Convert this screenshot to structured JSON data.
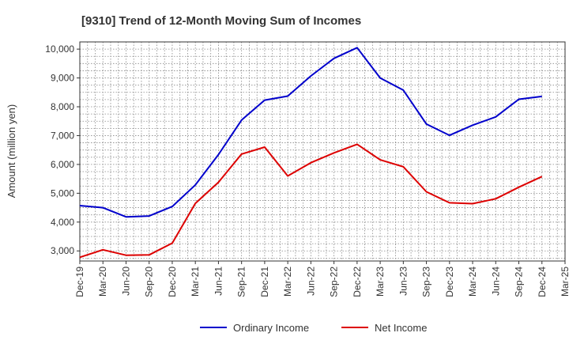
{
  "chart_data": {
    "type": "line",
    "title": "[9310]  Trend of 12-Month Moving Sum of Incomes",
    "xlabel": "",
    "ylabel": "Amount (million yen)",
    "ylim": [
      2650,
      10250
    ],
    "yticks": [
      "3,000",
      "4,000",
      "5,000",
      "6,000",
      "7,000",
      "8,000",
      "9,000",
      "10,000"
    ],
    "ytick_values": [
      3000,
      4000,
      5000,
      6000,
      7000,
      8000,
      9000,
      10000
    ],
    "xticks": [
      "Dec-19",
      "Mar-20",
      "Jun-20",
      "Sep-20",
      "Dec-20",
      "Mar-21",
      "Jun-21",
      "Sep-21",
      "Dec-21",
      "Mar-22",
      "Jun-22",
      "Sep-22",
      "Dec-22",
      "Mar-23",
      "Jun-23",
      "Sep-23",
      "Dec-23",
      "Mar-24",
      "Jun-24",
      "Sep-24",
      "Dec-24",
      "Mar-25"
    ],
    "grid": true,
    "legend_position": "bottom",
    "series": [
      {
        "name": "Ordinary Income",
        "color": "#0000cc",
        "values": [
          4570,
          4500,
          4180,
          4210,
          4540,
          5290,
          6340,
          7540,
          8230,
          8370,
          9070,
          9680,
          10050,
          9000,
          8580,
          7400,
          7010,
          7360,
          7650,
          8260,
          8360
        ]
      },
      {
        "name": "Net Income",
        "color": "#dd0000",
        "values": [
          2780,
          3040,
          2850,
          2860,
          3270,
          4650,
          5380,
          6360,
          6600,
          5600,
          6060,
          6400,
          6700,
          6160,
          5920,
          5050,
          4670,
          4640,
          4810,
          5210,
          5580
        ]
      }
    ]
  }
}
